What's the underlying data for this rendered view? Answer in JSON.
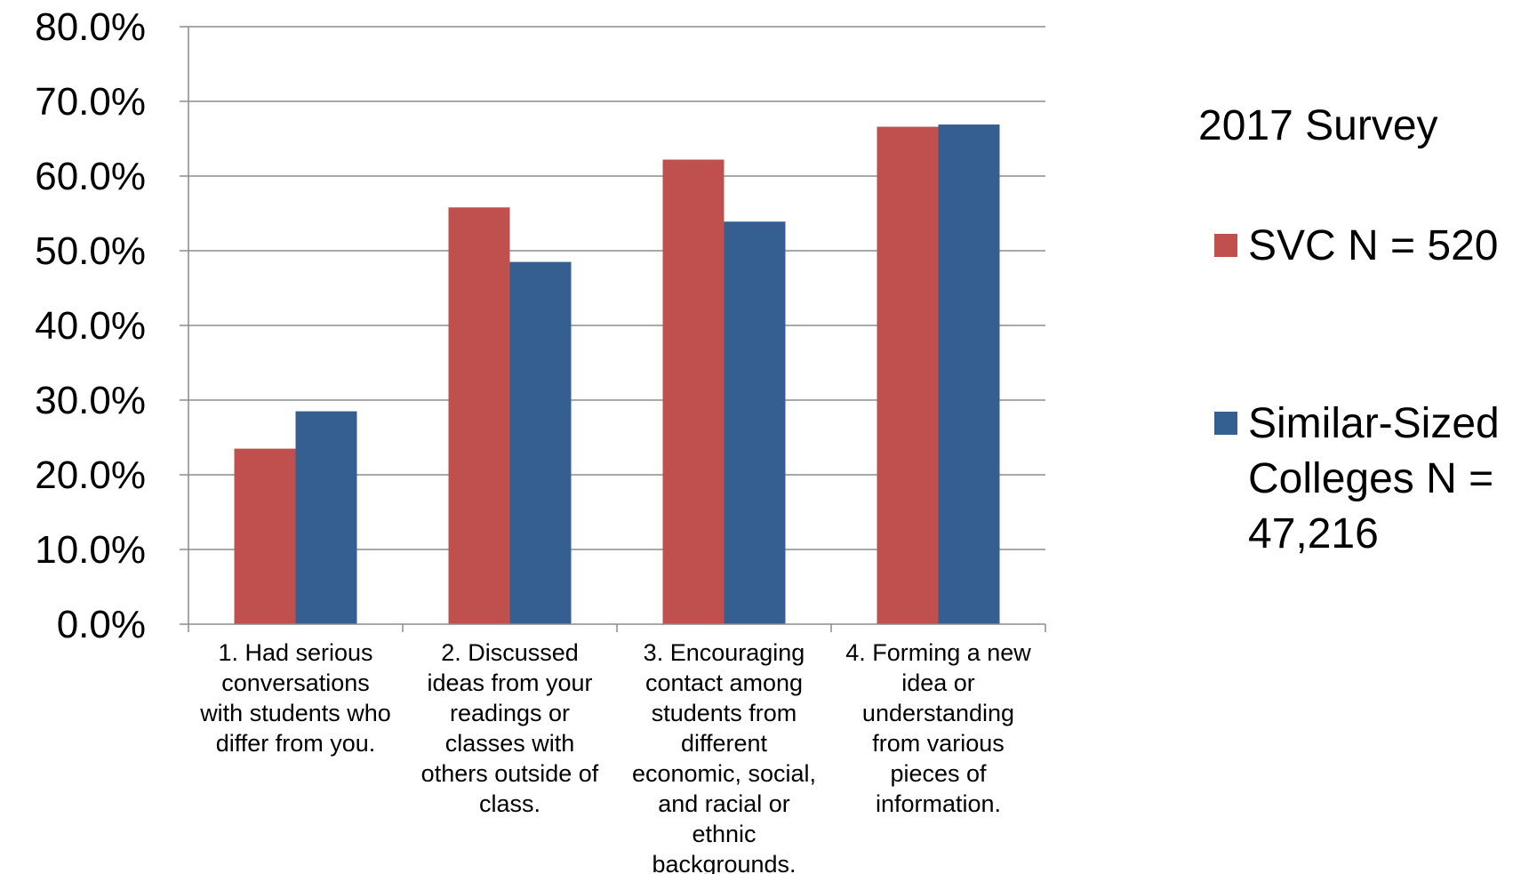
{
  "chart_data": {
    "type": "bar",
    "title": "",
    "xlabel": "",
    "ylabel": "",
    "ylim": [
      0,
      80
    ],
    "yticks": [
      "0.0%",
      "10.0%",
      "20.0%",
      "30.0%",
      "40.0%",
      "50.0%",
      "60.0%",
      "70.0%",
      "80.0%"
    ],
    "grid": true,
    "legend_position": "right",
    "legend_title": "2017 Survey",
    "categories": [
      "1. Had serious conversations with students who differ from you.",
      "2. Discussed ideas from your readings or classes with others outside of class.",
      "3. Encouraging contact among students from different economic, social, and racial or ethnic backgrounds.",
      "4. Forming a new idea or understanding from various pieces of information."
    ],
    "category_lines": [
      [
        "1. Had serious",
        "conversations",
        "with students who",
        "differ from you."
      ],
      [
        "2. Discussed",
        "ideas from your",
        "readings or",
        "classes with",
        "others outside of",
        "class."
      ],
      [
        "3. Encouraging",
        "contact among",
        "students from",
        "different",
        "economic, social,",
        "and racial or",
        "ethnic",
        "backgrounds."
      ],
      [
        "4. Forming a new",
        "idea or",
        "understanding",
        "from various",
        "pieces of",
        "information."
      ]
    ],
    "series": [
      {
        "name": "SVC N = 520",
        "color": "#C0504D",
        "values": [
          23.5,
          55.8,
          62.2,
          66.6
        ]
      },
      {
        "name": "Similar-Sized Colleges N = 47,216",
        "color": "#365F91",
        "values": [
          28.5,
          48.5,
          53.9,
          66.9
        ]
      }
    ],
    "legend_lines": [
      [
        "SVC N = 520"
      ],
      [
        "Similar-Sized",
        "Colleges N =",
        "47,216"
      ]
    ]
  }
}
